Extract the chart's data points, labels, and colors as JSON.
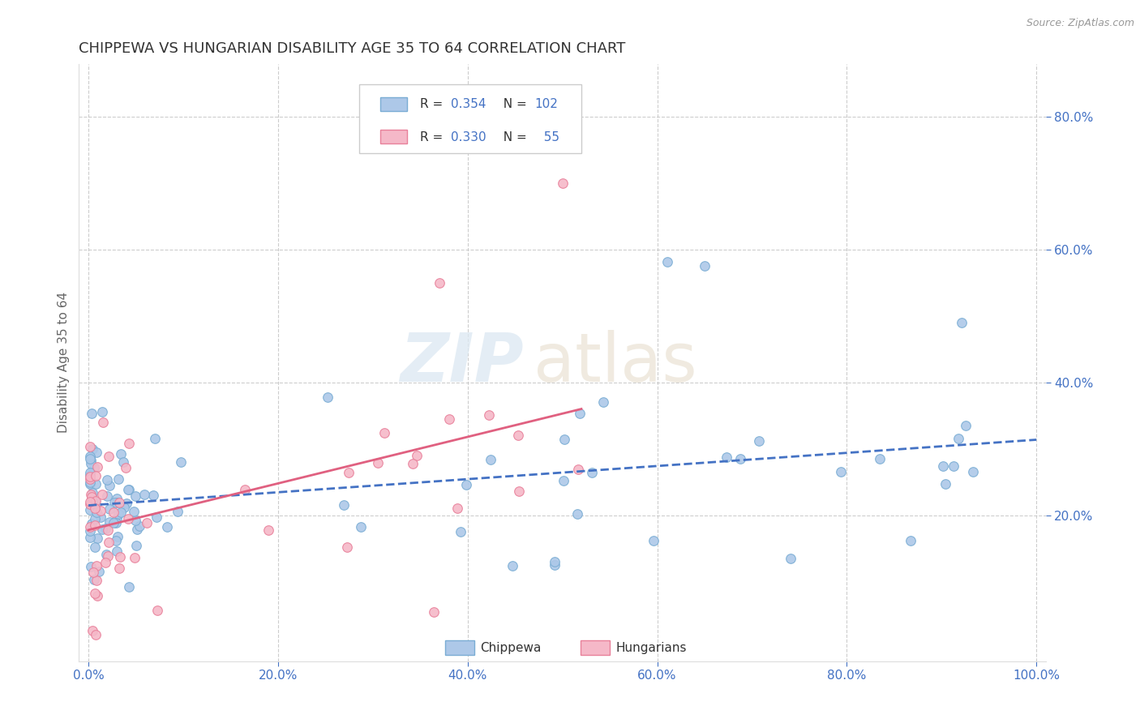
{
  "title": "CHIPPEWA VS HUNGARIAN DISABILITY AGE 35 TO 64 CORRELATION CHART",
  "source_text": "Source: ZipAtlas.com",
  "ylabel": "Disability Age 35 to 64",
  "xlim": [
    -0.01,
    1.01
  ],
  "ylim": [
    -0.02,
    0.88
  ],
  "xticks": [
    0.0,
    0.2,
    0.4,
    0.6,
    0.8,
    1.0
  ],
  "xticklabels": [
    "0.0%",
    "20.0%",
    "40.0%",
    "60.0%",
    "80.0%",
    "100.0%"
  ],
  "yticks": [
    0.2,
    0.4,
    0.6,
    0.8
  ],
  "yticklabels": [
    "20.0%",
    "40.0%",
    "60.0%",
    "80.0%"
  ],
  "chippewa_color": "#adc8e8",
  "chippewa_edge_color": "#7aadd4",
  "hungarian_color": "#f5b8c8",
  "hungarian_edge_color": "#e8809a",
  "chippewa_line_color": "#4472c4",
  "hungarian_line_color": "#e06080",
  "chippewa_R": 0.354,
  "chippewa_N": 102,
  "hungarian_R": 0.33,
  "hungarian_N": 55,
  "watermark_zip": "ZIP",
  "watermark_atlas": "atlas",
  "background_color": "#ffffff",
  "grid_color": "#c8c8c8",
  "title_color": "#333333",
  "axis_label_color": "#666666",
  "tick_color": "#4472c4",
  "legend_text_color": "#4472c4",
  "source_color": "#999999"
}
